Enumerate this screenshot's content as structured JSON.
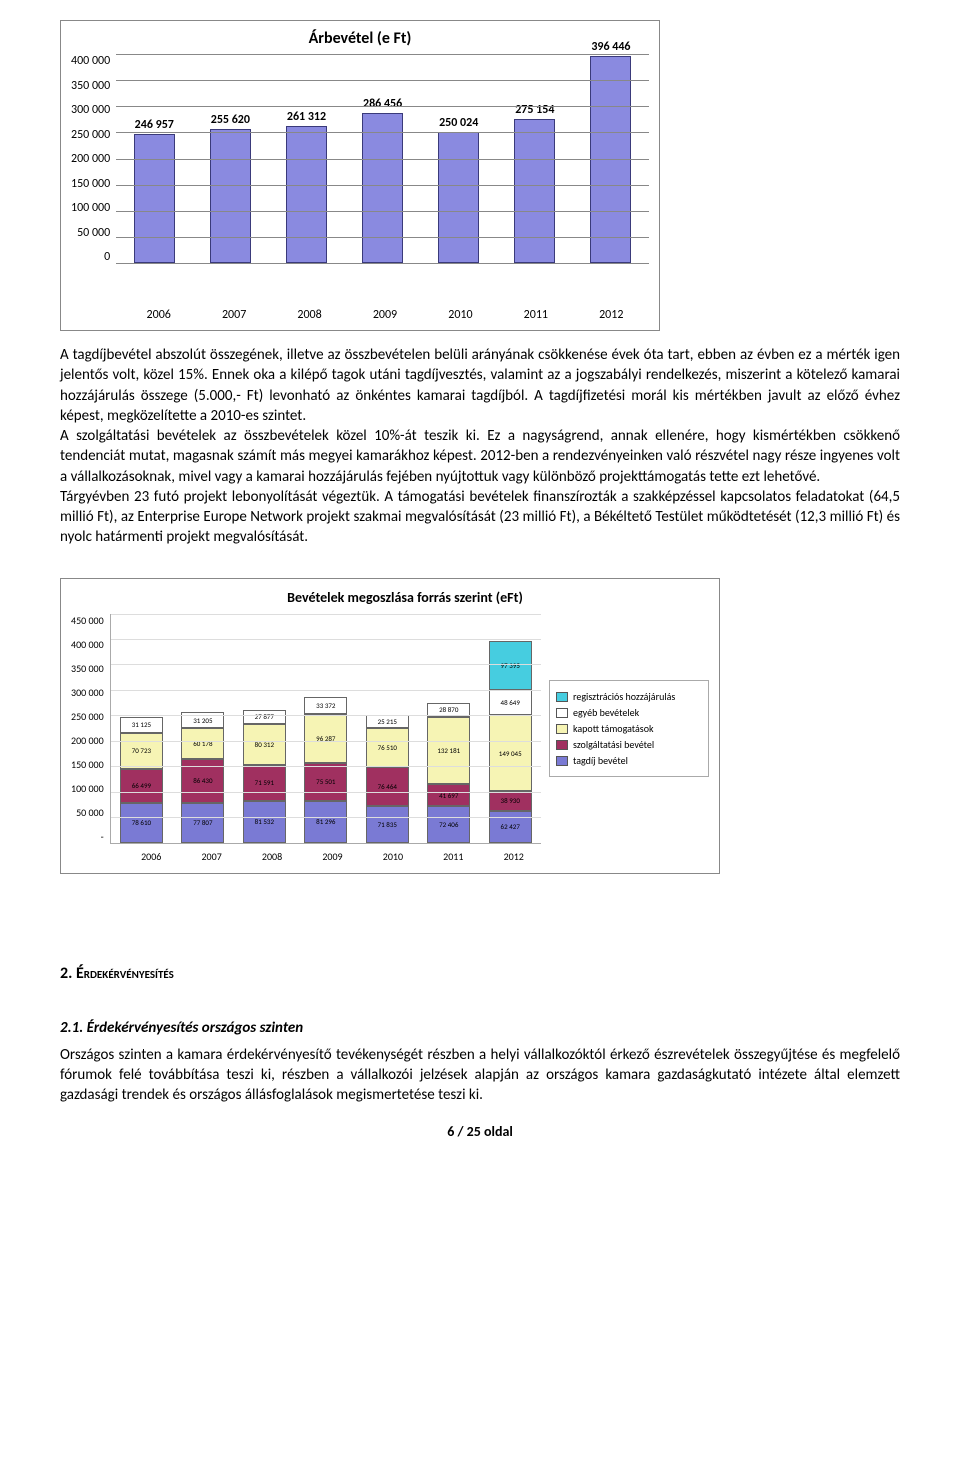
{
  "chart1": {
    "type": "bar",
    "title": "Árbevétel (e Ft)",
    "categories": [
      "2006",
      "2007",
      "2008",
      "2009",
      "2010",
      "2011",
      "2012"
    ],
    "values": [
      246957,
      255620,
      261312,
      286456,
      250024,
      275154,
      396446
    ],
    "value_labels": [
      "246 957",
      "255 620",
      "261 312",
      "286 456",
      "250 024",
      "275 154",
      "396 446"
    ],
    "bar_color": "#8a8ae0",
    "bar_border": "#3a3a7a",
    "ylim": [
      0,
      400000
    ],
    "ytick_step": 50000,
    "yticks": [
      "400 000",
      "350 000",
      "300 000",
      "250 000",
      "200 000",
      "150 000",
      "100 000",
      "50 000",
      "0"
    ],
    "grid_color": "#888888",
    "background_color": "#ffffff",
    "title_fontsize": 16,
    "label_fontsize": 12,
    "bar_width": 0.7
  },
  "para1": "A tagdíjbevétel abszolút összegének, illetve az összbevételen belüli arányának csökkenése évek óta tart, ebben az évben ez a mérték igen jelentős volt, közel 15%. Ennek oka a kilépő tagok utáni tagdíjvesztés, valamint az a jogszabályi rendelkezés, miszerint a kötelező kamarai hozzájárulás összege (5.000,- Ft) levonható az önkéntes kamarai tagdíjból. A tagdíjfizetési morál kis mértékben javult az előző évhez képest, megközelítette a 2010-es szintet.",
  "para2": "A szolgáltatási bevételek az összbevételek közel 10%-át teszik ki. Ez a nagyságrend, annak ellenére, hogy kismértékben csökkenő tendenciát mutat, magasnak számít más megyei kamarákhoz képest. 2012-ben a rendezvényeinken való részvétel nagy része ingyenes volt a vállalkozásoknak, mivel vagy a kamarai hozzájárulás fejében nyújtottuk vagy különböző projekttámogatás tette ezt lehetővé.",
  "para3": "Tárgyévben 23 futó projekt lebonyolítását végeztük. A támogatási bevételek finanszírozták a szakképzéssel kapcsolatos feladatokat (64,5 millió Ft), az Enterprise Europe Network projekt szakmai megvalósítását (23 millió Ft), a Békéltető Testület működtetését (12,3 millió Ft) és nyolc határmenti projekt megvalósítását.",
  "chart2": {
    "type": "stacked_bar",
    "title": "Bevételek megoszlása forrás szerint (eFt)",
    "categories": [
      "2006",
      "2007",
      "2008",
      "2009",
      "2010",
      "2011",
      "2012"
    ],
    "series_order": [
      "tagdij",
      "szolgaltatasi",
      "kapott",
      "egyeb",
      "regisztracios"
    ],
    "series_colors": {
      "tagdij": "#7a7ad4",
      "szolgaltatasi": "#a03060",
      "kapott": "#f6f4b4",
      "egyeb": "#ffffff",
      "regisztracios": "#46cde0"
    },
    "rows": [
      {
        "year": "2006",
        "tagdij": 78610,
        "szolgaltatasi": 66499,
        "kapott": 70723,
        "egyeb": 31125,
        "regisztracios": 0
      },
      {
        "year": "2007",
        "tagdij": 77807,
        "szolgaltatasi": 86430,
        "kapott": 60178,
        "egyeb": 31205,
        "regisztracios": 0
      },
      {
        "year": "2008",
        "tagdij": 81532,
        "szolgaltatasi": 71591,
        "kapott": 80312,
        "egyeb": 27877,
        "regisztracios": 0
      },
      {
        "year": "2009",
        "tagdij": 81296,
        "szolgaltatasi": 75501,
        "kapott": 96287,
        "egyeb": 33372,
        "regisztracios": 0
      },
      {
        "year": "2010",
        "tagdij": 71835,
        "szolgaltatasi": 76464,
        "kapott": 76510,
        "egyeb": 25215,
        "regisztracios": 0
      },
      {
        "year": "2011",
        "tagdij": 72406,
        "szolgaltatasi": 41697,
        "kapott": 132181,
        "egyeb": 28870,
        "regisztracios": 0
      },
      {
        "year": "2012",
        "tagdij": 62427,
        "szolgaltatasi": 38930,
        "kapott": 149045,
        "egyeb": 48649,
        "regisztracios": 97395
      }
    ],
    "value_labels": [
      {
        "tagdij": "78 610",
        "szolgaltatasi": "66 499",
        "kapott": "70 723",
        "egyeb": "31 125"
      },
      {
        "tagdij": "77 807",
        "szolgaltatasi": "86 430",
        "kapott": "60 178",
        "egyeb": "31 205"
      },
      {
        "tagdij": "81 532",
        "szolgaltatasi": "71 591",
        "kapott": "80 312",
        "egyeb": "27 877"
      },
      {
        "tagdij": "81 296",
        "szolgaltatasi": "75 501",
        "kapott": "96 287",
        "egyeb": "33 372"
      },
      {
        "tagdij": "71 835",
        "szolgaltatasi": "76 464",
        "kapott": "76 510",
        "egyeb": "25 215"
      },
      {
        "tagdij": "72 406",
        "szolgaltatasi": "41 697",
        "kapott": "132 181",
        "egyeb": "28 870"
      },
      {
        "tagdij": "62 427",
        "szolgaltatasi": "38 930",
        "kapott": "149 045",
        "egyeb": "48 649",
        "regisztracios": "97 395"
      }
    ],
    "legend": [
      {
        "key": "regisztracios",
        "label": "regisztrációs hozzájárulás"
      },
      {
        "key": "egyeb",
        "label": "egyéb bevételek"
      },
      {
        "key": "kapott",
        "label": "kapott támogatások"
      },
      {
        "key": "szolgaltatasi",
        "label": "szolgáltatási bevétel"
      },
      {
        "key": "tagdij",
        "label": "tagdíj bevétel"
      }
    ],
    "ylim": [
      0,
      450000
    ],
    "ytick_step": 50000,
    "yticks": [
      "450 000",
      "400 000",
      "350 000",
      "300 000",
      "250 000",
      "200 000",
      "150 000",
      "100 000",
      "50 000",
      "-"
    ],
    "grid_color": "#dddddd",
    "title_fontsize": 14,
    "label_fontsize": 10,
    "bar_width": 0.55
  },
  "sections": {
    "h2": "2. Érdekérvényesítés",
    "h3": "2.1. Érdekérvényesítés országos szinten",
    "p": "Országos szinten a kamara érdekérvényesítő tevékenységét részben a helyi vállalkozóktól érkező észrevételek összegyűjtése és megfelelő fórumok felé továbbítása teszi ki, részben a vállalkozói jelzések alapján az országos kamara gazdaságkutató intézete által elemzett gazdasági trendek és országos állásfoglalások megismertetése teszi ki."
  },
  "footer": "6 / 25 oldal"
}
